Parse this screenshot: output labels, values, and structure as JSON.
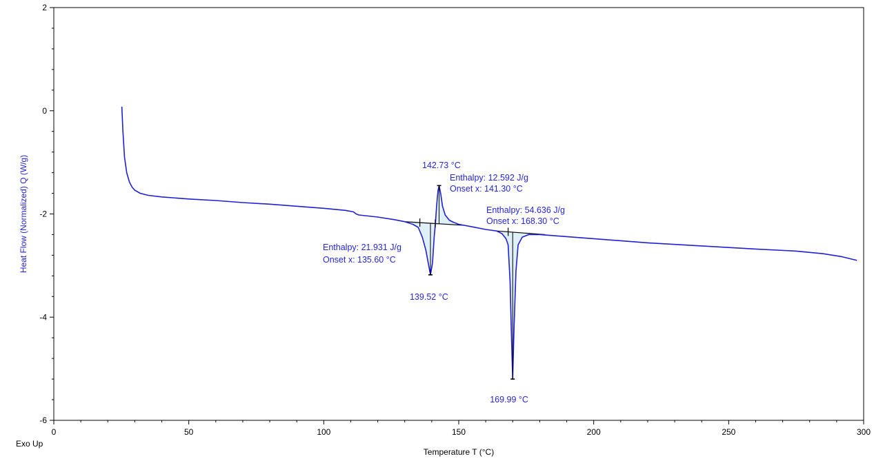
{
  "chart_data": {
    "type": "line",
    "title": "",
    "xlabel": "Temperature T (°C)",
    "ylabel": "Heat Flow (Normalized) Q (W/g)",
    "corner_label": "Exo Up",
    "xlim": [
      0,
      300
    ],
    "ylim": [
      -6,
      2
    ],
    "x_ticks": [
      "0",
      "50",
      "100",
      "150",
      "200",
      "250",
      "300"
    ],
    "y_ticks": [
      "2",
      "0",
      "-2",
      "-4",
      "-6"
    ],
    "grid": false,
    "legend": "none",
    "colors": {
      "curve": "#1f1fd6",
      "annotation_text": "#2525d9",
      "baseline": "#000000",
      "peak_fill": "#dff0f8",
      "axis": "#000000"
    },
    "series": [
      {
        "values": [
          [
            25.2,
            0.08
          ],
          [
            25.6,
            -0.4
          ],
          [
            26.2,
            -0.9
          ],
          [
            27.0,
            -1.2
          ],
          [
            28.0,
            -1.38
          ],
          [
            29.0,
            -1.48
          ],
          [
            30.0,
            -1.54
          ],
          [
            32.0,
            -1.6
          ],
          [
            35.0,
            -1.64
          ],
          [
            40.0,
            -1.67
          ],
          [
            50.0,
            -1.71
          ],
          [
            60.0,
            -1.74
          ],
          [
            70.0,
            -1.78
          ],
          [
            80.0,
            -1.81
          ],
          [
            90.0,
            -1.85
          ],
          [
            100.0,
            -1.89
          ],
          [
            108.0,
            -1.93
          ],
          [
            111.0,
            -1.96
          ],
          [
            112.0,
            -2.0
          ],
          [
            113.0,
            -2.02
          ],
          [
            120.0,
            -2.06
          ],
          [
            126.0,
            -2.11
          ],
          [
            130.0,
            -2.15
          ],
          [
            133.0,
            -2.2
          ],
          [
            135.0,
            -2.26
          ],
          [
            136.5,
            -2.45
          ],
          [
            137.8,
            -2.7
          ],
          [
            138.8,
            -2.98
          ],
          [
            139.52,
            -3.18
          ],
          [
            140.3,
            -2.95
          ],
          [
            140.9,
            -2.45
          ],
          [
            141.3,
            -2.22
          ],
          [
            141.8,
            -1.85
          ],
          [
            142.3,
            -1.55
          ],
          [
            142.73,
            -1.45
          ],
          [
            143.3,
            -1.6
          ],
          [
            144.0,
            -1.85
          ],
          [
            145.0,
            -2.02
          ],
          [
            146.5,
            -2.12
          ],
          [
            148.0,
            -2.16
          ],
          [
            150.0,
            -2.2
          ],
          [
            155.0,
            -2.25
          ],
          [
            160.0,
            -2.3
          ],
          [
            164.0,
            -2.33
          ],
          [
            166.0,
            -2.38
          ],
          [
            167.5,
            -2.48
          ],
          [
            168.3,
            -2.6
          ],
          [
            169.0,
            -3.3
          ],
          [
            169.5,
            -4.3
          ],
          [
            169.99,
            -5.2
          ],
          [
            170.5,
            -4.2
          ],
          [
            171.2,
            -3.1
          ],
          [
            172.0,
            -2.6
          ],
          [
            173.5,
            -2.45
          ],
          [
            176.0,
            -2.4
          ],
          [
            180.0,
            -2.4
          ],
          [
            200.0,
            -2.48
          ],
          [
            220.0,
            -2.56
          ],
          [
            240.0,
            -2.62
          ],
          [
            260.0,
            -2.68
          ],
          [
            275.0,
            -2.72
          ],
          [
            285.0,
            -2.77
          ],
          [
            292.0,
            -2.83
          ],
          [
            297.5,
            -2.9
          ]
        ]
      }
    ],
    "integration_baselines": [
      [
        [
          130.0,
          -2.15
        ],
        [
          152.0,
          -2.22
        ]
      ],
      [
        [
          164.0,
          -2.33
        ],
        [
          182.0,
          -2.4
        ]
      ]
    ],
    "peaks": [
      {
        "id": "endo1",
        "peak_x": 139.52,
        "peak_y": -3.18,
        "peak_label": "139.52 °C",
        "enthalpy_label": "Enthalpy: 21.931 J/g",
        "onset_label": "Onset x: 135.60 °C",
        "onset_x": 135.6,
        "fill_range": [
          133.0,
          141.3
        ]
      },
      {
        "id": "exo1",
        "peak_x": 142.73,
        "peak_y": -1.45,
        "peak_label": "142.73 °C",
        "enthalpy_label": "Enthalpy: 12.592 J/g",
        "onset_label": "Onset x: 141.30 °C",
        "onset_x": 141.3,
        "fill_range": [
          141.3,
          148.0
        ]
      },
      {
        "id": "endo2",
        "peak_x": 169.99,
        "peak_y": -5.2,
        "peak_label": "169.99 °C",
        "enthalpy_label": "Enthalpy: 54.636 J/g",
        "onset_label": "Onset x: 168.30 °C",
        "onset_x": 168.3,
        "fill_range": [
          166.0,
          176.0
        ]
      }
    ]
  }
}
